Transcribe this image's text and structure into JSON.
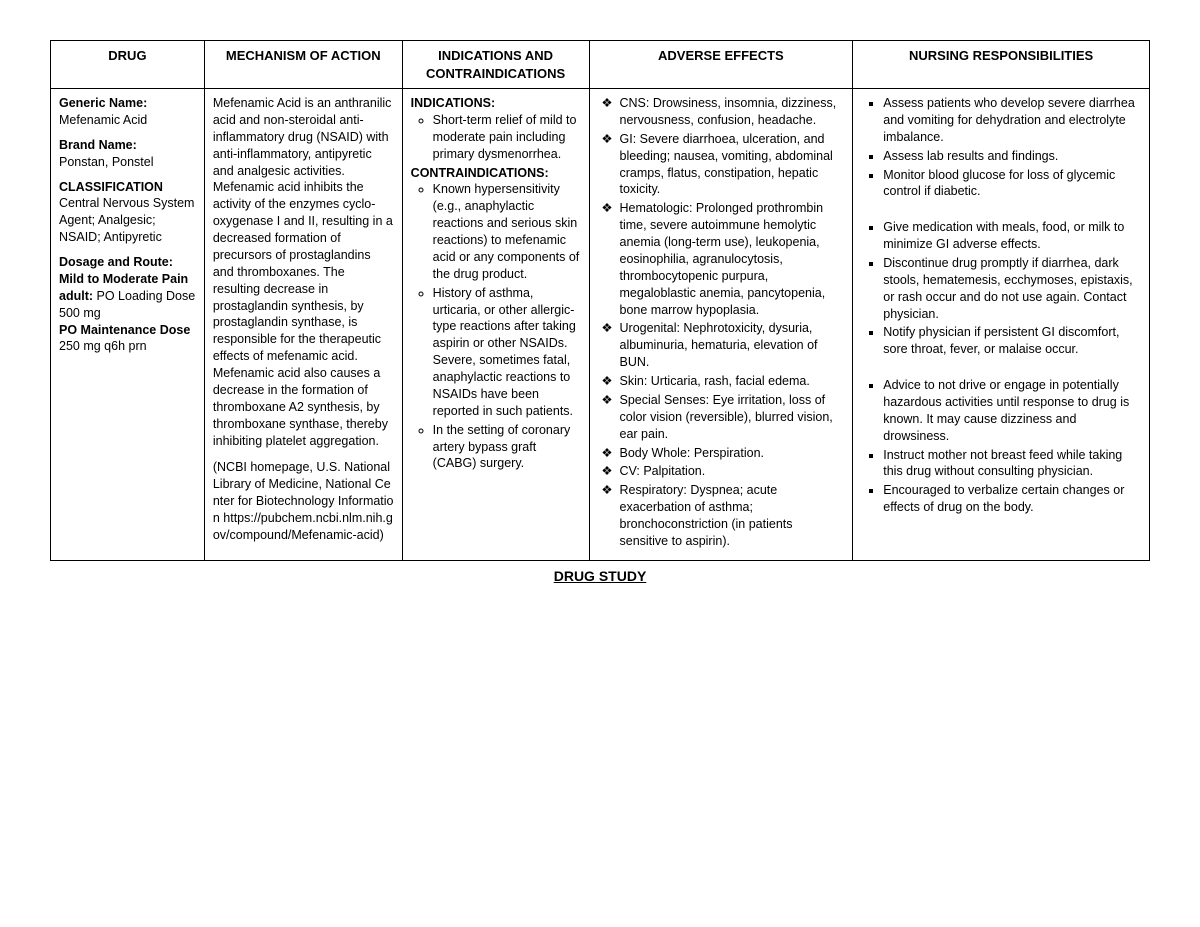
{
  "headers": {
    "drug": "DRUG",
    "moa": "MECHANISM OF ACTION",
    "ind": "INDICATIONS AND CONTRAINDICATIONS",
    "ae": "ADVERSE EFFECTS",
    "nurs": "NURSING RESPONSIBILITIES"
  },
  "drug": {
    "generic_label": "Generic Name:",
    "generic": "Mefenamic Acid",
    "brand_label": "Brand Name:",
    "brand": "Ponstan, Ponstel",
    "class_label": "CLASSIFICATION",
    "class_text": "Central Nervous System Agent; Analgesic; NSAID; Antipyretic",
    "dosage_label": "Dosage and Route:",
    "dosage_line1_b": "Mild to Moderate Pain adult:",
    "dosage_line1_t": " PO Loading Dose 500 mg",
    "dosage_line2_b": "PO Maintenance Dose",
    "dosage_line2_t": " 250 mg q6h prn"
  },
  "moa": {
    "p1": "Mefenamic Acid is an anthranilic acid and non-steroidal anti-inflammatory drug (NSAID) with anti-inflammatory, antipyretic and analgesic activities. Mefenamic acid inhibits the activity of the enzymes cyclo-oxygenase I and II, resulting in a decreased formation of precursors of prostaglandins and thromboxanes. The resulting decrease in prostaglandin synthesis, by prostaglandin synthase, is responsible for the therapeutic effects of mefenamic acid. Mefenamic acid also causes a decrease in the formation of thromboxane A2 synthesis, by thromboxane synthase, thereby inhibiting platelet aggregation.",
    "p2": "(NCBI homepage, U.S. National Library of Medicine, National Center for Biotechnology Information https://pubchem.ncbi.nlm.nih.gov/compound/Mefenamic-acid)"
  },
  "ind": {
    "ind_label": "INDICATIONS:",
    "ind_items": [
      "Short-term relief of mild to moderate pain including primary dysmenorrhea."
    ],
    "contra_label": "CONTRAINDICATIONS:",
    "contra_items": [
      "Known hypersensitivity (e.g., anaphylactic reactions and serious skin reactions) to mefenamic acid or any components of the drug product.",
      "History of asthma, urticaria, or other allergic-type reactions after taking aspirin or other NSAIDs. Severe, sometimes fatal, anaphylactic reactions to NSAIDs have been reported in such patients.",
      "In the setting of coronary artery bypass graft (CABG) surgery."
    ]
  },
  "ae": [
    "CNS: Drowsiness, insomnia, dizziness, nervousness, confusion, headache.",
    "GI: Severe diarrhoea, ulceration, and bleeding; nausea, vomiting, abdominal cramps, flatus, constipation, hepatic toxicity.",
    "Hematologic: Prolonged prothrombin time, severe autoimmune hemolytic anemia (long-term use), leukopenia, eosinophilia, agranulocytosis, thrombocytopenic purpura, megaloblastic anemia, pancytopenia, bone marrow hypoplasia.",
    "Urogenital: Nephrotoxicity, dysuria, albuminuria, hematuria, elevation of BUN.",
    "Skin: Urticaria, rash, facial edema.",
    "Special Senses: Eye irritation, loss of color vision (reversible), blurred vision, ear pain.",
    "Body Whole: Perspiration.",
    "CV: Palpitation.",
    "Respiratory: Dyspnea; acute exacerbation of asthma; bronchoconstriction (in patients sensitive to aspirin)."
  ],
  "nurs": {
    "g1": [
      "Assess patients who develop severe diarrhea and vomiting for dehydration and electrolyte imbalance.",
      "Assess lab results and findings.",
      "Monitor blood glucose for loss of glycemic control if diabetic."
    ],
    "g2": [
      "Give medication with meals, food, or milk to minimize GI adverse effects.",
      "Discontinue drug promptly if diarrhea, dark stools, hematemesis, ecchymoses, epistaxis, or rash occur and do not use again. Contact physician.",
      "Notify physician if persistent GI discomfort, sore throat, fever, or malaise occur."
    ],
    "g3": [
      "Advice to not drive or engage in potentially hazardous activities until response to drug is known. It may cause dizziness and drowsiness.",
      "Instruct mother not breast feed while taking this drug without consulting physician.",
      "Encouraged to verbalize certain changes or effects of drug on the body."
    ]
  },
  "footer": "DRUG STUDY"
}
